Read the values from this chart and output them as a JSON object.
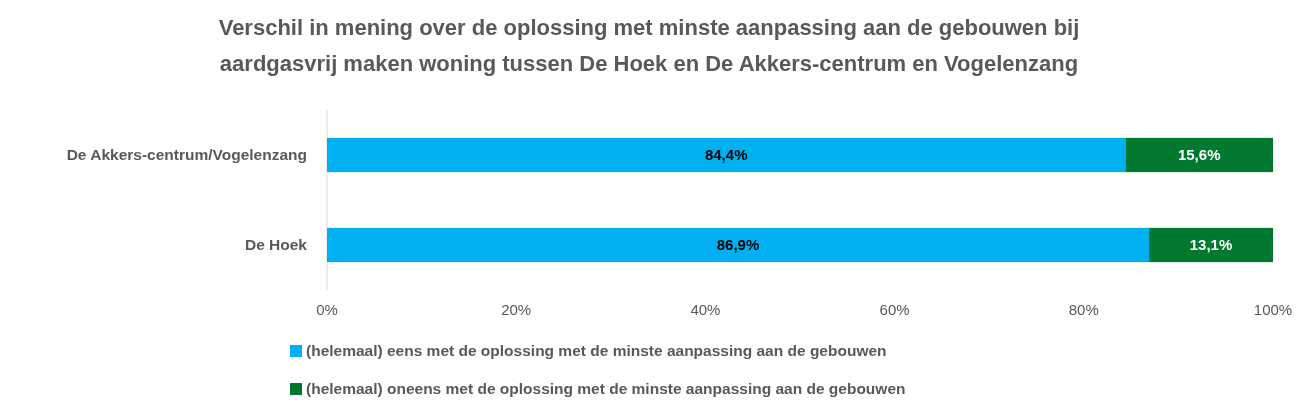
{
  "chart_data": {
    "type": "bar",
    "orientation": "horizontal",
    "stacked": true,
    "title": "Verschil in mening over de oplossing met minste aanpassing aan de gebouwen bij\naardgasvrij maken woning tussen De Hoek en De Akkers-centrum en Vogelenzang",
    "categories": [
      "De Akkers-centrum/Vogelenzang",
      "De Hoek"
    ],
    "series": [
      {
        "name": "(helemaal) eens met de oplossing met de minste aanpassing aan de gebouwen",
        "color": "#00b0f0",
        "values": [
          84.4,
          86.9
        ],
        "value_labels": [
          "84,4%",
          "86,9%"
        ]
      },
      {
        "name": "(helemaal) oneens met de oplossing met de minste aanpassing aan de gebouwen",
        "color": "#00782f",
        "values": [
          15.6,
          13.1
        ],
        "value_labels": [
          "15,6%",
          "13,1%"
        ]
      }
    ],
    "xlim": [
      0,
      100
    ],
    "xticks": [
      {
        "value": 0,
        "label": "0%"
      },
      {
        "value": 20,
        "label": "20%"
      },
      {
        "value": 40,
        "label": "40%"
      },
      {
        "value": 60,
        "label": "60%"
      },
      {
        "value": 80,
        "label": "80%"
      },
      {
        "value": 100,
        "label": "100%"
      }
    ],
    "legend": "bottom",
    "grid": false
  }
}
